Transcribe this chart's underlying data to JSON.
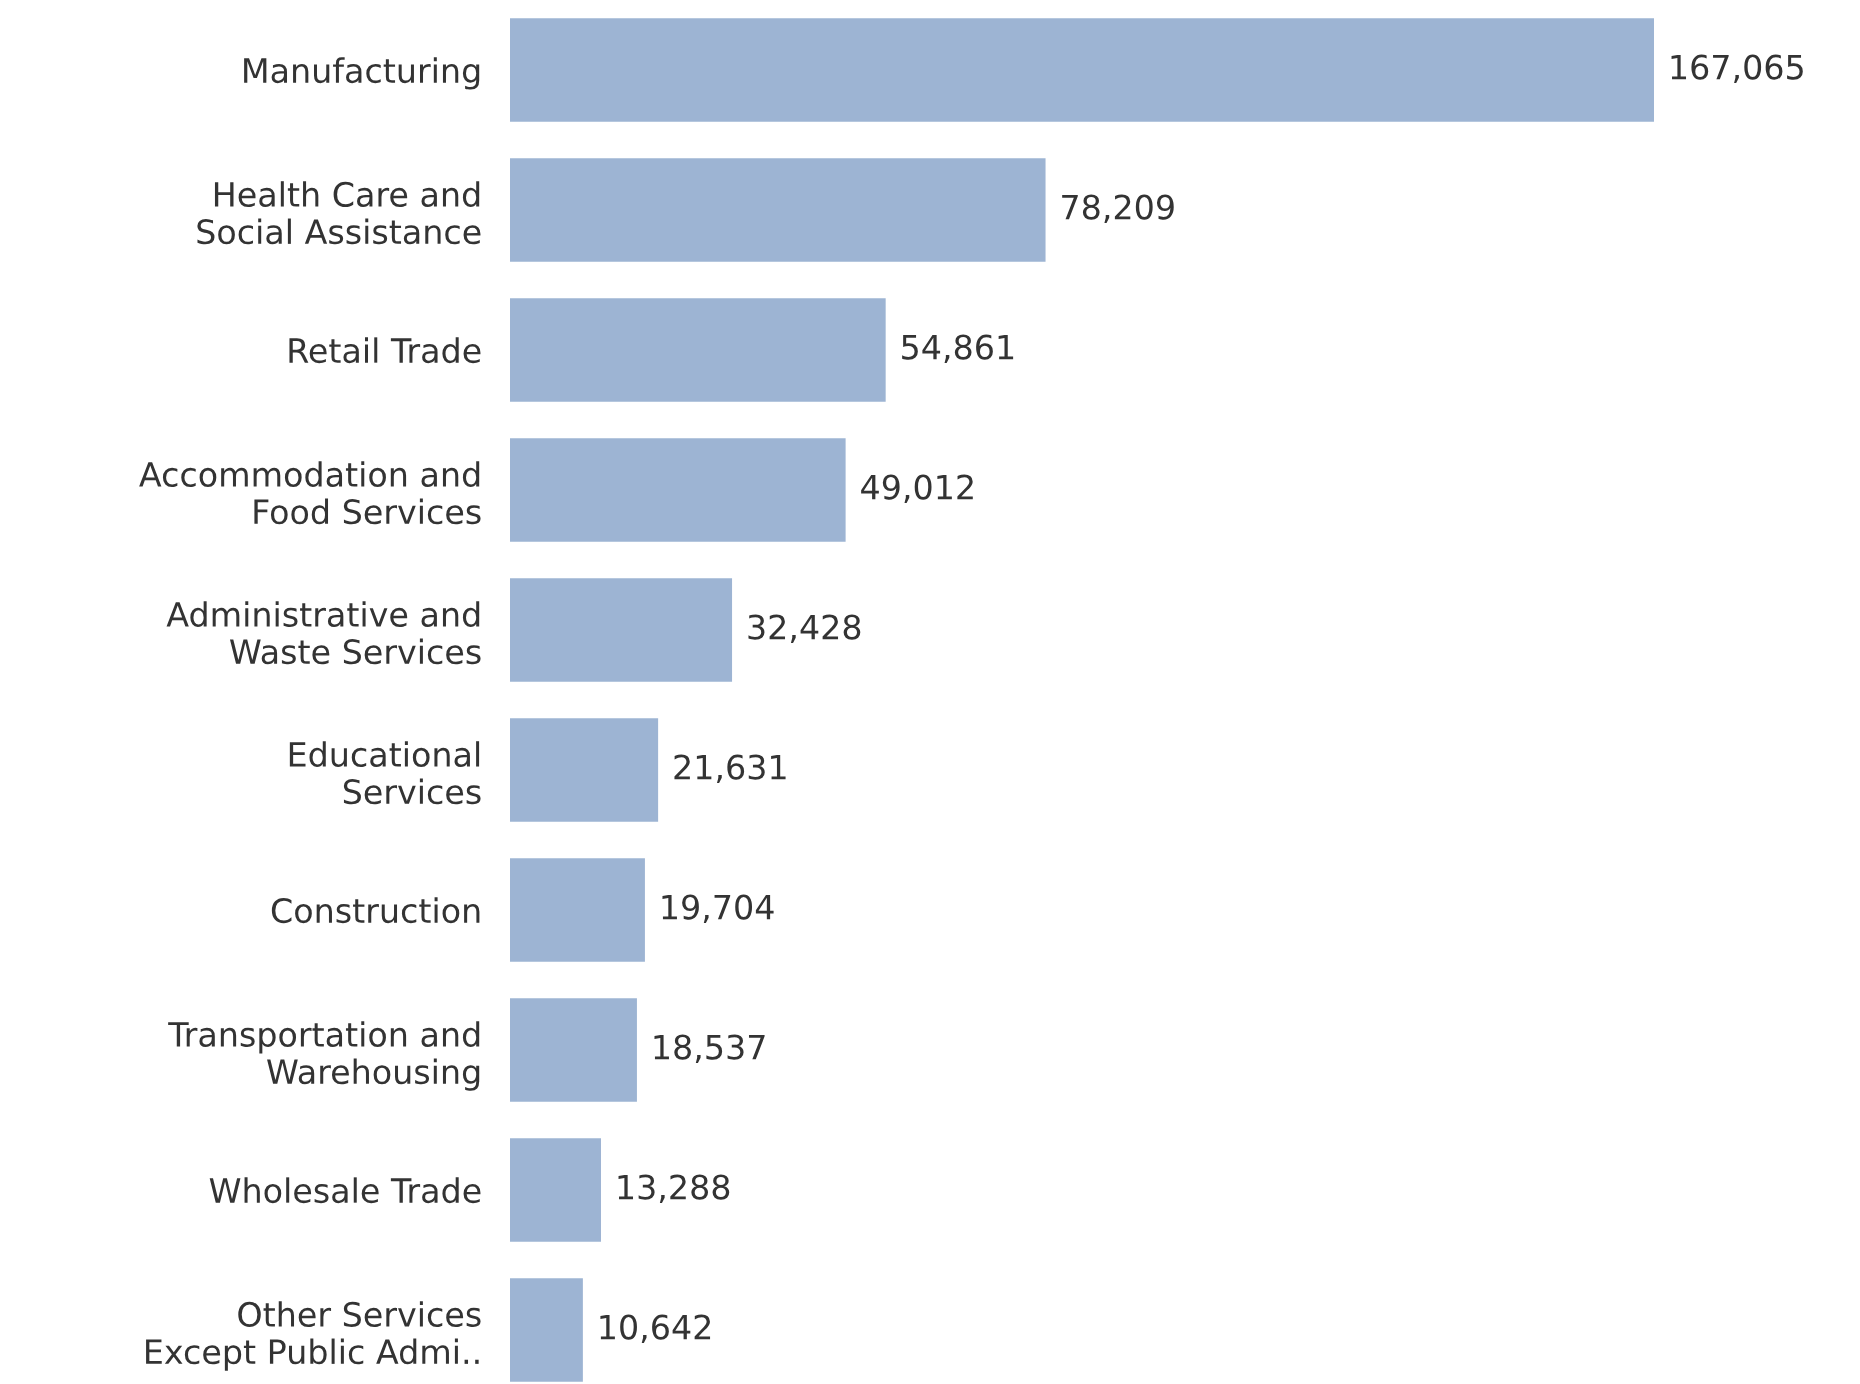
{
  "chart_data": {
    "type": "bar",
    "orientation": "horizontal",
    "grid": false,
    "legend": false,
    "categories": [
      "Manufacturing",
      "Health Care and\nSocial Assistance",
      "Retail Trade",
      "Accommodation and\nFood Services",
      "Administrative and\nWaste Services",
      "Educational\nServices",
      "Construction",
      "Transportation and\nWarehousing",
      "Wholesale Trade",
      "Other Services\nExcept Public Admi.."
    ],
    "values": [
      167065,
      78209,
      54861,
      49012,
      32428,
      21631,
      19704,
      18537,
      13288,
      10642
    ],
    "value_labels": [
      "167,065",
      "78,209",
      "54,861",
      "49,012",
      "32,428",
      "21,631",
      "19,704",
      "18,537",
      "13,288",
      "10,642"
    ],
    "color": "#9db4d3",
    "tick_labels": "y"
  }
}
